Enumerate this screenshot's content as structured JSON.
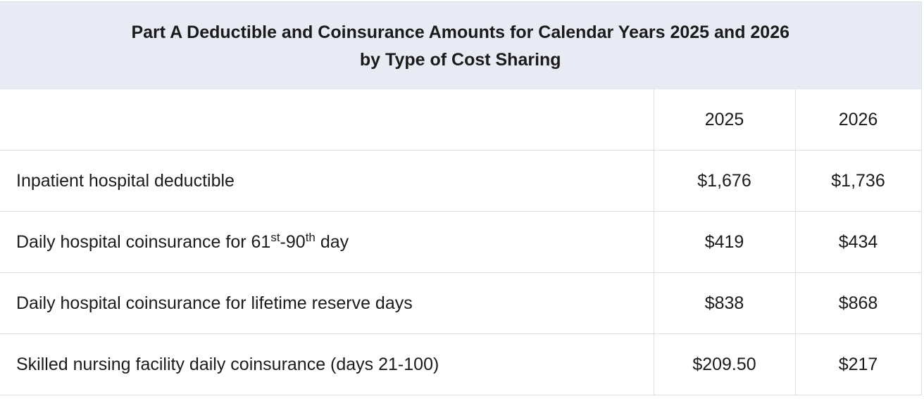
{
  "table": {
    "title_line1": "Part A Deductible and Coinsurance Amounts for Calendar Years 2025 and 2026",
    "title_line2": "by Type of Cost Sharing",
    "headers": [
      "",
      "2025",
      "2026"
    ],
    "rows": [
      {
        "label": "Inpatient hospital deductible",
        "v2025": "$1,676",
        "v2026": "$1,736"
      },
      {
        "label_pre": "Daily hospital coinsurance for 61",
        "label_sup1": "st",
        "label_mid": "-90",
        "label_sup2": "th",
        "label_post": " day",
        "v2025": "$419",
        "v2026": "$434"
      },
      {
        "label": "Daily hospital coinsurance for lifetime reserve days",
        "v2025": "$838",
        "v2026": "$868"
      },
      {
        "label": "Skilled nursing facility daily coinsurance (days 21-100)",
        "v2025": "$209.50",
        "v2026": "$217"
      }
    ]
  }
}
